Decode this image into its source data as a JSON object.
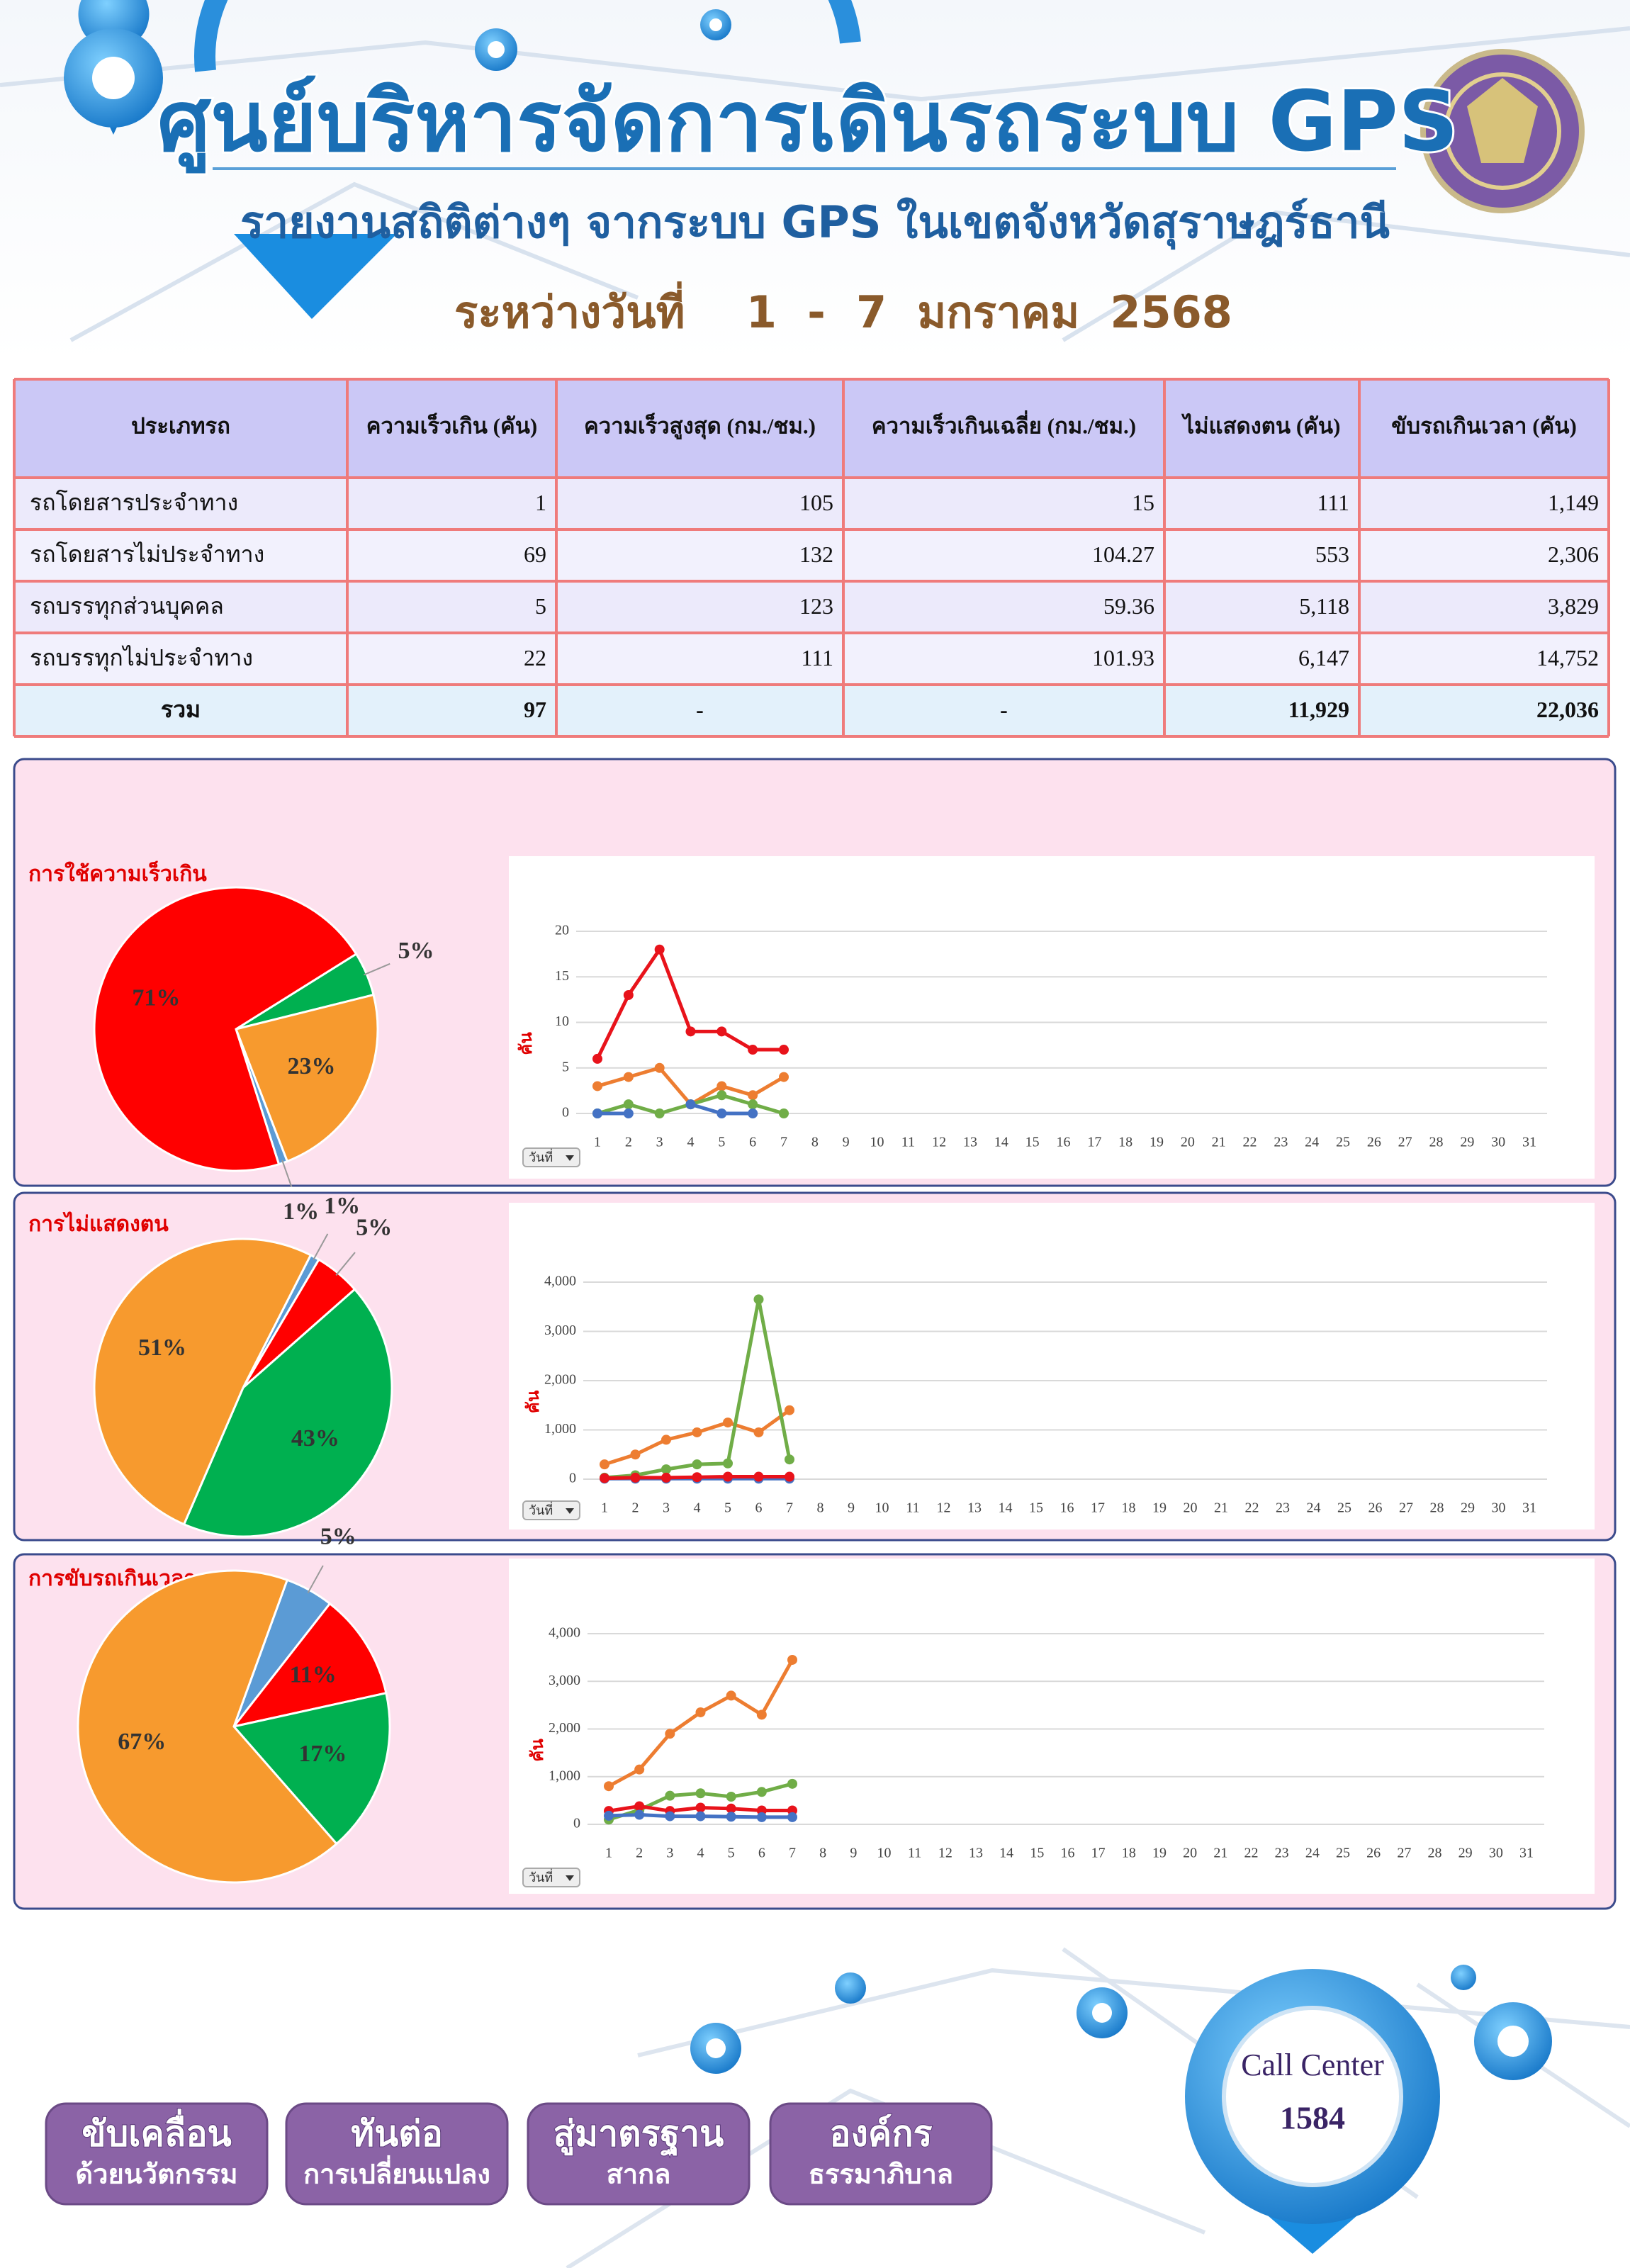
{
  "header": {
    "title": "ศูนย์บริหารจัดการเดินรถระบบ GPS",
    "subtitle": "รายงานสถิติต่างๆ จากระบบ GPS ในเขตจังหวัดสุราษฎร์ธานี",
    "period": "ระหว่างวันที่    1  -  7  มกราคม  2568"
  },
  "table": {
    "columns": [
      "ประเภทรถ",
      "ความเร็วเกิน (คัน)",
      "ความเร็วสูงสุด (กม./ชม.)",
      "ความเร็วเกินเฉลี่ย (กม./ชม.)",
      "ไม่แสดงตน (คัน)",
      "ขับรถเกินเวลา (คัน)"
    ],
    "rows": [
      [
        "รถโดยสารประจำทาง",
        "1",
        "105",
        "15",
        "111",
        "1,149"
      ],
      [
        "รถโดยสารไม่ประจำทาง",
        "69",
        "132",
        "104.27",
        "553",
        "2,306"
      ],
      [
        "รถบรรทุกส่วนบุคคล",
        "5",
        "123",
        "59.36",
        "5,118",
        "3,829"
      ],
      [
        "รถบรรทุกไม่ประจำทาง",
        "22",
        "111",
        "101.93",
        "6,147",
        "14,752"
      ],
      [
        "รวม",
        "97",
        "-",
        "-",
        "11,929",
        "22,036"
      ]
    ]
  },
  "chart_data": [
    {
      "type": "pie",
      "title": "การใช้ความเร็วเกิน",
      "values": [
        5,
        23,
        1,
        71
      ],
      "value_labels": [
        "5%",
        "23%",
        "1%",
        "71%"
      ],
      "colors": [
        "#00b050",
        "#f79a2e",
        "#5b9bd5",
        "#ff0000"
      ]
    },
    {
      "type": "line",
      "y_label": "คัน",
      "x_label": "วันที่",
      "grid": true,
      "categories": [
        1,
        2,
        3,
        4,
        5,
        6,
        7,
        8,
        9,
        10,
        11,
        12,
        13,
        14,
        15,
        16,
        17,
        18,
        19,
        20,
        21,
        22,
        23,
        24,
        25,
        26,
        27,
        28,
        29,
        30,
        31
      ],
      "ylim": [
        0,
        20
      ],
      "yticks": [
        0,
        5,
        10,
        15,
        20
      ],
      "series": [
        {
          "color": "#e8131b",
          "values": [
            6,
            13,
            18,
            9,
            9,
            7,
            7,
            null,
            null,
            null,
            null,
            null,
            null,
            null,
            null,
            null,
            null,
            null,
            null,
            null,
            null,
            null,
            null,
            null,
            null,
            null,
            null,
            null,
            null,
            null,
            null
          ]
        },
        {
          "color": "#ed7d31",
          "values": [
            3,
            4,
            5,
            1,
            3,
            2,
            4,
            null,
            null,
            null,
            null,
            null,
            null,
            null,
            null,
            null,
            null,
            null,
            null,
            null,
            null,
            null,
            null,
            null,
            null,
            null,
            null,
            null,
            null,
            null,
            null
          ]
        },
        {
          "color": "#70ad47",
          "values": [
            0,
            1,
            0,
            1,
            2,
            1,
            0,
            null,
            null,
            null,
            null,
            null,
            null,
            null,
            null,
            null,
            null,
            null,
            null,
            null,
            null,
            null,
            null,
            null,
            null,
            null,
            null,
            null,
            null,
            null,
            null
          ]
        },
        {
          "color": "#4472c4",
          "values": [
            0,
            0,
            null,
            1,
            0,
            0,
            null,
            null,
            null,
            null,
            null,
            null,
            null,
            null,
            null,
            null,
            null,
            null,
            null,
            null,
            null,
            null,
            null,
            null,
            null,
            null,
            null,
            null,
            null,
            null,
            null
          ]
        }
      ]
    },
    {
      "type": "pie",
      "title": "การไม่แสดงตน",
      "values": [
        1,
        5,
        43,
        51
      ],
      "value_labels": [
        "1%",
        "5%",
        "43%",
        "51%"
      ],
      "colors": [
        "#5b9bd5",
        "#ff0000",
        "#00b050",
        "#f79a2e"
      ]
    },
    {
      "type": "line",
      "y_label": "คัน",
      "x_label": "วันที่",
      "grid": true,
      "categories": [
        1,
        2,
        3,
        4,
        5,
        6,
        7,
        8,
        9,
        10,
        11,
        12,
        13,
        14,
        15,
        16,
        17,
        18,
        19,
        20,
        21,
        22,
        23,
        24,
        25,
        26,
        27,
        28,
        29,
        30,
        31
      ],
      "ylim": [
        0,
        4000
      ],
      "yticks": [
        0,
        {
          "value": 1000,
          "label": "1,000"
        },
        {
          "value": 2000,
          "label": "2,000"
        },
        {
          "value": 3000,
          "label": "3,000"
        },
        {
          "value": 4000,
          "label": "4,000"
        }
      ],
      "series": [
        {
          "color": "#ed7d31",
          "values": [
            300,
            500,
            800,
            950,
            1150,
            950,
            1400,
            null,
            null,
            null,
            null,
            null,
            null,
            null,
            null,
            null,
            null,
            null,
            null,
            null,
            null,
            null,
            null,
            null,
            null,
            null,
            null,
            null,
            null,
            null,
            null
          ]
        },
        {
          "color": "#70ad47",
          "values": [
            30,
            80,
            200,
            300,
            320,
            3650,
            400,
            null,
            null,
            null,
            null,
            null,
            null,
            null,
            null,
            null,
            null,
            null,
            null,
            null,
            null,
            null,
            null,
            null,
            null,
            null,
            null,
            null,
            null,
            null,
            null
          ]
        },
        {
          "color": "#4472c4",
          "values": [
            10,
            10,
            10,
            10,
            10,
            10,
            10,
            null,
            null,
            null,
            null,
            null,
            null,
            null,
            null,
            null,
            null,
            null,
            null,
            null,
            null,
            null,
            null,
            null,
            null,
            null,
            null,
            null,
            null,
            null,
            null
          ]
        },
        {
          "color": "#e8131b",
          "values": [
            20,
            30,
            30,
            40,
            50,
            50,
            50,
            null,
            null,
            null,
            null,
            null,
            null,
            null,
            null,
            null,
            null,
            null,
            null,
            null,
            null,
            null,
            null,
            null,
            null,
            null,
            null,
            null,
            null,
            null,
            null
          ]
        }
      ]
    },
    {
      "type": "pie",
      "title": "การขับรถเกินเวลา",
      "values": [
        5,
        11,
        17,
        67
      ],
      "value_labels": [
        "5%",
        "11%",
        "17%",
        "67%"
      ],
      "colors": [
        "#5b9bd5",
        "#ff0000",
        "#00b050",
        "#f79a2e"
      ]
    },
    {
      "type": "line",
      "y_label": "คัน",
      "x_label": "วันที่",
      "grid": true,
      "categories": [
        1,
        2,
        3,
        4,
        5,
        6,
        7,
        8,
        9,
        10,
        11,
        12,
        13,
        14,
        15,
        16,
        17,
        18,
        19,
        20,
        21,
        22,
        23,
        24,
        25,
        26,
        27,
        28,
        29,
        30,
        31
      ],
      "ylim": [
        0,
        4000
      ],
      "yticks": [
        0,
        {
          "value": 1000,
          "label": "1,000"
        },
        {
          "value": 2000,
          "label": "2,000"
        },
        {
          "value": 3000,
          "label": "3,000"
        },
        {
          "value": 4000,
          "label": "4,000"
        }
      ],
      "series": [
        {
          "color": "#ed7d31",
          "values": [
            800,
            1150,
            1900,
            2350,
            2700,
            2300,
            3450,
            null,
            null,
            null,
            null,
            null,
            null,
            null,
            null,
            null,
            null,
            null,
            null,
            null,
            null,
            null,
            null,
            null,
            null,
            null,
            null,
            null,
            null,
            null,
            null
          ]
        },
        {
          "color": "#70ad47",
          "values": [
            100,
            300,
            600,
            650,
            580,
            680,
            850,
            null,
            null,
            null,
            null,
            null,
            null,
            null,
            null,
            null,
            null,
            null,
            null,
            null,
            null,
            null,
            null,
            null,
            null,
            null,
            null,
            null,
            null,
            null,
            null
          ]
        },
        {
          "color": "#e8131b",
          "values": [
            280,
            380,
            280,
            350,
            330,
            290,
            290,
            null,
            null,
            null,
            null,
            null,
            null,
            null,
            null,
            null,
            null,
            null,
            null,
            null,
            null,
            null,
            null,
            null,
            null,
            null,
            null,
            null,
            null,
            null,
            null
          ]
        },
        {
          "color": "#4472c4",
          "values": [
            180,
            200,
            170,
            170,
            160,
            150,
            150,
            null,
            null,
            null,
            null,
            null,
            null,
            null,
            null,
            null,
            null,
            null,
            null,
            null,
            null,
            null,
            null,
            null,
            null,
            null,
            null,
            null,
            null,
            null,
            null
          ]
        }
      ]
    }
  ],
  "footer": {
    "buttons": [
      [
        "ขับเคลื่อน",
        "ด้วยนวัตกรรม"
      ],
      [
        "ทันต่อ",
        "การเปลี่ยนแปลง"
      ],
      [
        "สู่มาตรฐาน",
        "สากล"
      ],
      [
        "องค์กร",
        "ธรรมาภิบาล"
      ]
    ],
    "call_center": "Call Center",
    "call_number": "1584"
  }
}
